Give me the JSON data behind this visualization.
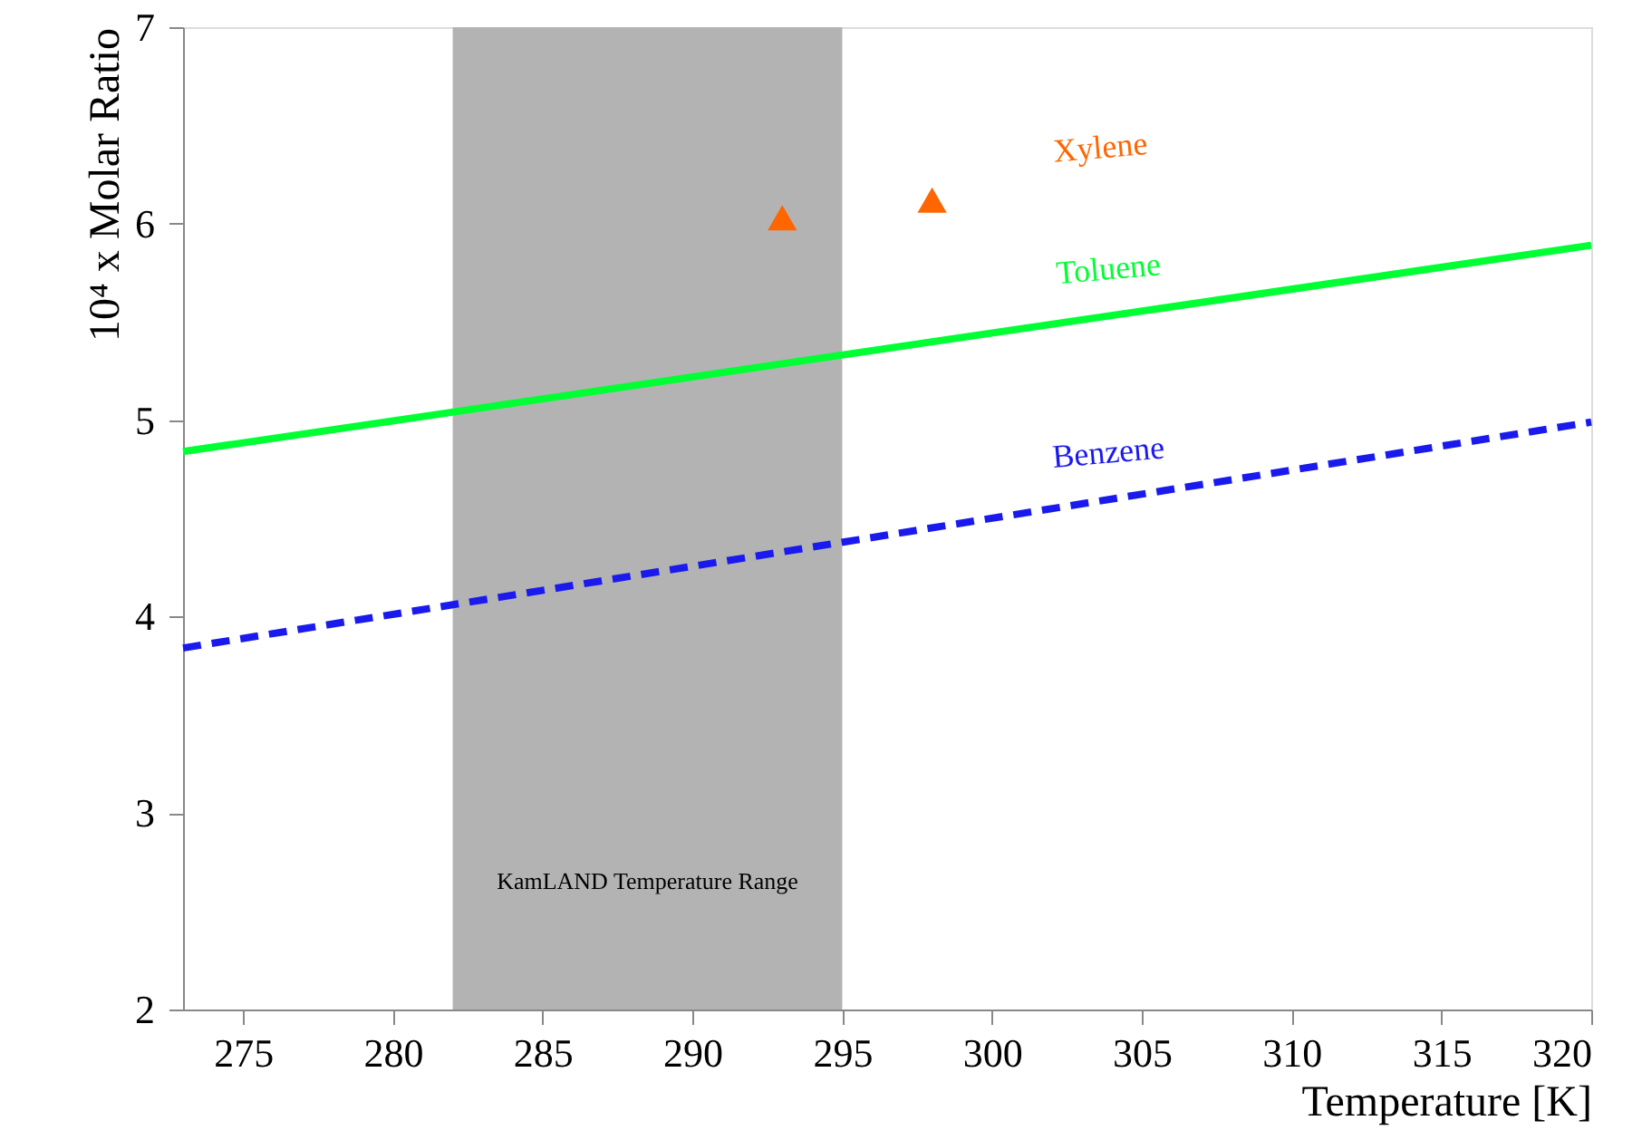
{
  "chart_data": {
    "type": "line",
    "xlabel": "Temperature [K]",
    "ylabel": "10⁴ x Molar Ratio",
    "xlim": [
      273,
      320
    ],
    "xticks": [
      275,
      280,
      285,
      290,
      295,
      300,
      305,
      310,
      315,
      320
    ],
    "ylim": [
      2,
      7
    ],
    "yticks": [
      2,
      3,
      4,
      5,
      6,
      7
    ],
    "grid": false,
    "series": [
      {
        "name": "Xylene",
        "type": "scatter",
        "marker": "triangle",
        "color": "#ff6600",
        "x": [
          293,
          298
        ],
        "values": [
          6.03,
          6.12
        ]
      },
      {
        "name": "Toluene",
        "line_style": "solid",
        "color": "#00ff33",
        "x": [
          273,
          320
        ],
        "values": [
          4.84,
          5.89
        ]
      },
      {
        "name": "Benzene",
        "line_style": "dashed",
        "color": "#1a1aee",
        "x": [
          273,
          320
        ],
        "values": [
          3.84,
          4.99
        ]
      }
    ],
    "bands": [
      {
        "axis": "x",
        "from": 282,
        "to": 295,
        "label": "KamLAND Temperature Range",
        "color": "#b3b3b3"
      }
    ]
  }
}
